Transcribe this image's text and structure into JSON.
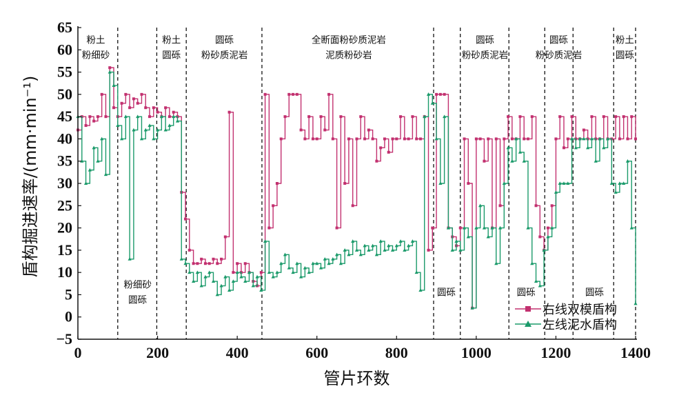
{
  "chart_data": {
    "type": "line",
    "title": "",
    "xlabel": "管片环数",
    "ylabel": "盾构掘进速率/(mm·min⁻¹)",
    "xlim": [
      0,
      1400
    ],
    "ylim": [
      -5,
      65
    ],
    "xticks": [
      0,
      200,
      400,
      600,
      800,
      1000,
      1200,
      1400
    ],
    "yticks": [
      -5,
      0,
      5,
      10,
      15,
      20,
      25,
      30,
      35,
      40,
      45,
      50,
      55,
      60,
      65
    ],
    "grid": false,
    "legend_position": "bottom-right",
    "step": "post",
    "x": [
      0,
      10,
      20,
      30,
      40,
      50,
      60,
      70,
      80,
      90,
      100,
      110,
      120,
      130,
      140,
      150,
      160,
      170,
      180,
      190,
      200,
      210,
      220,
      230,
      240,
      250,
      260,
      270,
      280,
      290,
      300,
      310,
      320,
      330,
      340,
      350,
      360,
      370,
      380,
      390,
      400,
      410,
      420,
      430,
      440,
      450,
      460,
      470,
      480,
      490,
      500,
      510,
      520,
      530,
      540,
      550,
      560,
      570,
      580,
      590,
      600,
      610,
      620,
      630,
      640,
      650,
      660,
      670,
      680,
      690,
      700,
      710,
      720,
      730,
      740,
      750,
      760,
      770,
      780,
      790,
      800,
      810,
      820,
      830,
      840,
      850,
      860,
      870,
      880,
      890,
      900,
      910,
      920,
      930,
      940,
      950,
      960,
      970,
      980,
      990,
      1000,
      1010,
      1020,
      1030,
      1040,
      1050,
      1060,
      1070,
      1080,
      1090,
      1100,
      1110,
      1120,
      1130,
      1140,
      1150,
      1160,
      1170,
      1180,
      1190,
      1200,
      1210,
      1220,
      1230,
      1240,
      1250,
      1260,
      1270,
      1280,
      1290,
      1300,
      1310,
      1320,
      1330,
      1340,
      1350,
      1360,
      1370,
      1380,
      1390,
      1400
    ],
    "series": [
      {
        "name": "右线双模盾构",
        "color": "#c2306f",
        "marker": "square",
        "values": [
          42,
          45,
          43,
          45,
          44,
          45,
          50,
          45,
          56,
          47,
          45,
          48,
          50,
          47,
          49,
          48,
          50,
          47,
          45,
          47,
          46,
          45,
          47,
          45,
          46,
          45,
          28,
          22,
          15,
          12,
          12,
          13,
          12,
          12,
          13,
          12,
          13,
          18,
          46,
          10,
          12,
          10,
          12,
          10,
          8,
          7,
          10,
          50,
          20,
          25,
          30,
          40,
          45,
          50,
          50,
          50,
          42,
          40,
          45,
          40,
          40,
          45,
          42,
          50,
          40,
          20,
          45,
          30,
          40,
          25,
          40,
          45,
          40,
          42,
          40,
          35,
          38,
          40,
          37,
          40,
          40,
          45,
          40,
          40,
          45,
          40,
          40,
          45,
          15,
          20,
          50,
          50,
          50,
          20,
          18,
          16,
          20,
          40,
          30,
          2,
          40,
          40,
          35,
          40,
          20,
          40,
          25,
          40,
          45,
          40,
          40,
          45,
          40,
          40,
          45,
          25,
          18,
          15,
          20,
          25,
          40,
          45,
          38,
          40,
          45,
          40,
          40,
          42,
          40,
          45,
          40,
          40,
          45,
          40,
          40,
          45,
          40,
          45,
          40,
          45,
          40
        ]
      },
      {
        "name": "左线泥水盾构",
        "color": "#1a9a6a",
        "marker": "triangle",
        "values": [
          45,
          35,
          30,
          33,
          38,
          35,
          40,
          32,
          55,
          52,
          43,
          40,
          45,
          13,
          42,
          45,
          40,
          42,
          43,
          40,
          42,
          45,
          42,
          43,
          45,
          44,
          13,
          12,
          10,
          8,
          10,
          7,
          9,
          10,
          8,
          5,
          7,
          9,
          6,
          8,
          10,
          9,
          8,
          10,
          7,
          9,
          6,
          17,
          10,
          9,
          10,
          12,
          14,
          11,
          10,
          12,
          9,
          11,
          10,
          12,
          12,
          11,
          13,
          12,
          13,
          14,
          12,
          15,
          14,
          17,
          15,
          14,
          16,
          15,
          16,
          14,
          17,
          15,
          16,
          15,
          16,
          17,
          15,
          16,
          17,
          10,
          6,
          45,
          50,
          48,
          40,
          30,
          45,
          20,
          15,
          17,
          15,
          20,
          18,
          2,
          20,
          25,
          20,
          18,
          20,
          12,
          20,
          30,
          38,
          35,
          40,
          37,
          35,
          20,
          12,
          8,
          7,
          15,
          18,
          20,
          28,
          30,
          30,
          30,
          40,
          38,
          40,
          40,
          38,
          40,
          35,
          40,
          38,
          40,
          30,
          28,
          30,
          30,
          35,
          20,
          3
        ]
      }
    ],
    "dividers": [
      100,
      198,
      272,
      462,
      893,
      960,
      1082,
      1172,
      1243,
      1345,
      1400
    ],
    "annotations": [
      {
        "x": 45,
        "y": 61.5,
        "lines": [
          "粉土",
          "粉细砂"
        ]
      },
      {
        "x": 235,
        "y": 61.5,
        "lines": [
          "粉土",
          "圆砾"
        ]
      },
      {
        "x": 368,
        "y": 61.5,
        "lines": [
          "圆砾",
          "粉砂质泥岩"
        ]
      },
      {
        "x": 680,
        "y": 61.5,
        "lines": [
          "全断面粉砂质泥岩",
          "泥质粉砂岩"
        ]
      },
      {
        "x": 1022,
        "y": 61.5,
        "lines": [
          "圆砾",
          "粉砂质泥岩"
        ]
      },
      {
        "x": 1207,
        "y": 61.5,
        "lines": [
          "圆砾",
          "粉砂质泥岩"
        ]
      },
      {
        "x": 1373,
        "y": 61.5,
        "lines": [
          "粉土",
          "圆砾"
        ]
      },
      {
        "x": 150,
        "y": 6.5,
        "lines": [
          "粉细砂",
          "圆砾"
        ]
      },
      {
        "x": 925,
        "y": 4.8,
        "lines": [
          "圆砾"
        ]
      },
      {
        "x": 1125,
        "y": 4.8,
        "lines": [
          "圆砾"
        ]
      },
      {
        "x": 1297,
        "y": 4.8,
        "lines": [
          "圆砾"
        ]
      }
    ]
  }
}
